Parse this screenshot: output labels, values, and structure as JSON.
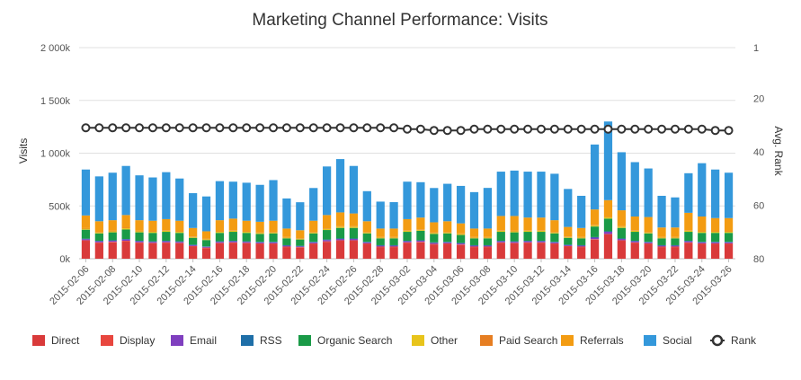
{
  "chart_data": {
    "type": "bar",
    "stacked": true,
    "title": "Marketing Channel Performance: Visits",
    "ylabel": "Visits",
    "y2label": "Avg. Rank",
    "ylim": [
      0,
      2000000
    ],
    "y2lim": [
      1,
      80
    ],
    "y2_reversed": true,
    "yticks": [
      "0k",
      "500k",
      "1 000k",
      "1 500k",
      "2 000k"
    ],
    "y2ticks": [
      "1",
      "20",
      "40",
      "60",
      "80"
    ],
    "grid": true,
    "legend_position": "bottom",
    "categories": [
      "2015-02-06",
      "2015-02-07",
      "2015-02-08",
      "2015-02-09",
      "2015-02-10",
      "2015-02-11",
      "2015-02-12",
      "2015-02-13",
      "2015-02-14",
      "2015-02-15",
      "2015-02-16",
      "2015-02-17",
      "2015-02-18",
      "2015-02-19",
      "2015-02-20",
      "2015-02-21",
      "2015-02-22",
      "2015-02-23",
      "2015-02-24",
      "2015-02-25",
      "2015-02-26",
      "2015-02-27",
      "2015-02-28",
      "2015-03-01",
      "2015-03-02",
      "2015-03-03",
      "2015-03-04",
      "2015-03-05",
      "2015-03-06",
      "2015-03-07",
      "2015-03-08",
      "2015-03-09",
      "2015-03-10",
      "2015-03-11",
      "2015-03-12",
      "2015-03-13",
      "2015-03-14",
      "2015-03-15",
      "2015-03-16",
      "2015-03-17",
      "2015-03-18",
      "2015-03-19",
      "2015-03-20",
      "2015-03-21",
      "2015-03-22",
      "2015-03-23",
      "2015-03-24",
      "2015-03-25",
      "2015-03-26"
    ],
    "xticks": [
      "2015-02-06",
      "2015-02-08",
      "2015-02-10",
      "2015-02-12",
      "2015-02-14",
      "2015-02-16",
      "2015-02-18",
      "2015-02-20",
      "2015-02-22",
      "2015-02-24",
      "2015-02-26",
      "2015-02-28",
      "2015-03-02",
      "2015-03-04",
      "2015-03-06",
      "2015-03-08",
      "2015-03-10",
      "2015-03-12",
      "2015-03-14",
      "2015-03-16",
      "2015-03-18",
      "2015-03-20",
      "2015-03-22",
      "2015-03-24",
      "2015-03-26"
    ],
    "series": [
      {
        "name": "Direct",
        "color": "#d93a3a",
        "values": [
          170000,
          150000,
          155000,
          165000,
          150000,
          145000,
          150000,
          145000,
          115000,
          100000,
          145000,
          150000,
          145000,
          140000,
          140000,
          110000,
          105000,
          140000,
          160000,
          170000,
          170000,
          140000,
          110000,
          110000,
          150000,
          155000,
          135000,
          140000,
          130000,
          110000,
          110000,
          150000,
          145000,
          150000,
          150000,
          140000,
          115000,
          110000,
          180000,
          230000,
          170000,
          150000,
          140000,
          110000,
          110000,
          150000,
          140000,
          140000,
          140000
        ]
      },
      {
        "name": "Display",
        "color": "#e8463e",
        "values": [
          5000,
          5000,
          5000,
          5000,
          5000,
          5000,
          5000,
          5000,
          5000,
          5000,
          5000,
          5000,
          5000,
          5000,
          5000,
          5000,
          5000,
          5000,
          5000,
          5000,
          5000,
          5000,
          5000,
          5000,
          5000,
          5000,
          5000,
          5000,
          5000,
          5000,
          5000,
          5000,
          5000,
          5000,
          5000,
          5000,
          5000,
          5000,
          5000,
          5000,
          5000,
          5000,
          5000,
          5000,
          5000,
          5000,
          5000,
          5000,
          5000
        ]
      },
      {
        "name": "Email",
        "color": "#7f3fbf",
        "values": [
          10000,
          10000,
          10000,
          12000,
          10000,
          10000,
          10000,
          10000,
          8000,
          7000,
          10000,
          10000,
          10000,
          10000,
          10000,
          8000,
          7000,
          10000,
          12000,
          12000,
          12000,
          10000,
          8000,
          8000,
          10000,
          10000,
          10000,
          10000,
          10000,
          8000,
          8000,
          10000,
          10000,
          10000,
          10000,
          10000,
          8000,
          8000,
          15000,
          20000,
          12000,
          10000,
          10000,
          8000,
          8000,
          10000,
          10000,
          10000,
          10000
        ]
      },
      {
        "name": "RSS",
        "color": "#1f6fa8",
        "values": [
          5000,
          5000,
          5000,
          5000,
          5000,
          5000,
          5000,
          5000,
          5000,
          5000,
          5000,
          5000,
          5000,
          5000,
          5000,
          5000,
          5000,
          5000,
          5000,
          5000,
          5000,
          5000,
          5000,
          5000,
          5000,
          5000,
          5000,
          5000,
          5000,
          5000,
          5000,
          5000,
          5000,
          5000,
          5000,
          5000,
          5000,
          5000,
          5000,
          5000,
          5000,
          5000,
          5000,
          5000,
          5000,
          5000,
          5000,
          5000,
          5000
        ]
      },
      {
        "name": "Organic Search",
        "color": "#1a9a47",
        "values": [
          85000,
          70000,
          75000,
          90000,
          80000,
          80000,
          85000,
          80000,
          65000,
          60000,
          80000,
          85000,
          80000,
          75000,
          80000,
          65000,
          60000,
          80000,
          90000,
          100000,
          100000,
          80000,
          65000,
          65000,
          85000,
          90000,
          80000,
          80000,
          75000,
          65000,
          65000,
          85000,
          85000,
          85000,
          85000,
          80000,
          65000,
          65000,
          100000,
          120000,
          100000,
          85000,
          80000,
          65000,
          65000,
          85000,
          85000,
          85000,
          85000
        ]
      },
      {
        "name": "Other",
        "color": "#e8c41b",
        "values": [
          10000,
          10000,
          10000,
          12000,
          10000,
          10000,
          10000,
          10000,
          8000,
          8000,
          10000,
          10000,
          10000,
          10000,
          10000,
          8000,
          8000,
          10000,
          12000,
          12000,
          12000,
          10000,
          8000,
          8000,
          10000,
          10000,
          10000,
          10000,
          10000,
          8000,
          8000,
          10000,
          10000,
          10000,
          10000,
          10000,
          8000,
          8000,
          12000,
          15000,
          12000,
          10000,
          10000,
          8000,
          8000,
          10000,
          10000,
          10000,
          10000
        ]
      },
      {
        "name": "Paid Search",
        "color": "#e67e22",
        "values": [
          5000,
          5000,
          5000,
          5000,
          5000,
          5000,
          5000,
          5000,
          5000,
          5000,
          5000,
          5000,
          5000,
          5000,
          5000,
          5000,
          5000,
          5000,
          5000,
          5000,
          5000,
          5000,
          5000,
          5000,
          5000,
          5000,
          5000,
          5000,
          5000,
          5000,
          5000,
          5000,
          5000,
          5000,
          5000,
          5000,
          5000,
          5000,
          5000,
          5000,
          5000,
          5000,
          5000,
          5000,
          5000,
          5000,
          5000,
          5000,
          5000
        ]
      },
      {
        "name": "Referrals",
        "color": "#f39c12",
        "values": [
          120000,
          100000,
          100000,
          120000,
          100000,
          100000,
          105000,
          100000,
          80000,
          70000,
          105000,
          110000,
          100000,
          100000,
          105000,
          80000,
          75000,
          105000,
          125000,
          130000,
          120000,
          100000,
          80000,
          80000,
          105000,
          110000,
          95000,
          100000,
          95000,
          80000,
          80000,
          135000,
          140000,
          120000,
          120000,
          110000,
          90000,
          85000,
          145000,
          155000,
          150000,
          130000,
          140000,
          90000,
          90000,
          165000,
          140000,
          125000,
          125000
        ]
      },
      {
        "name": "Social",
        "color": "#3498db",
        "values": [
          435000,
          425000,
          450000,
          465000,
          425000,
          410000,
          445000,
          400000,
          330000,
          330000,
          370000,
          350000,
          360000,
          350000,
          385000,
          285000,
          265000,
          310000,
          460000,
          505000,
          450000,
          285000,
          255000,
          250000,
          355000,
          335000,
          325000,
          355000,
          355000,
          345000,
          385000,
          420000,
          430000,
          435000,
          435000,
          440000,
          360000,
          305000,
          615000,
          745000,
          550000,
          515000,
          460000,
          300000,
          285000,
          375000,
          505000,
          460000,
          430000
        ]
      },
      {
        "name": "Rank",
        "type": "line",
        "color": "#333333",
        "values": [
          31,
          31,
          31,
          31,
          31,
          31,
          31,
          31,
          31,
          31,
          31,
          31,
          31,
          31,
          31,
          31,
          31,
          31,
          31,
          31,
          31,
          31,
          31,
          31,
          31.5,
          31.5,
          32,
          32,
          32,
          31.5,
          31.5,
          31.5,
          31.5,
          31.5,
          31.5,
          31.5,
          31.5,
          31.5,
          31.5,
          31.5,
          31.5,
          31.5,
          31.5,
          31.5,
          31.5,
          31.5,
          31.5,
          32,
          32
        ]
      }
    ]
  }
}
